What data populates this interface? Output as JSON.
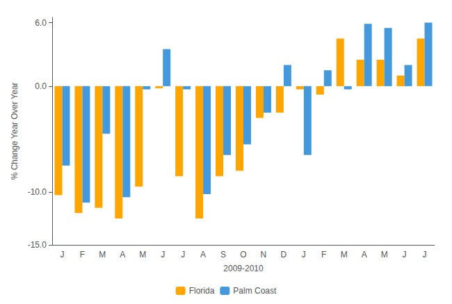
{
  "chart_data": {
    "type": "bar",
    "categories": [
      "J",
      "F",
      "M",
      "A",
      "M",
      "J",
      "J",
      "A",
      "S",
      "O",
      "N",
      "D",
      "J",
      "F",
      "M",
      "A",
      "M",
      "J",
      "J"
    ],
    "series": [
      {
        "name": "Florida",
        "color": "#FFA500",
        "values": [
          -10.3,
          -12.0,
          -11.5,
          -12.5,
          -9.5,
          -0.2,
          -8.5,
          -12.5,
          -8.5,
          -8.0,
          -3.0,
          -2.5,
          -0.3,
          -0.8,
          4.5,
          2.5,
          2.5,
          1.0,
          4.5
        ]
      },
      {
        "name": "Palm Coast",
        "color": "#4499DD",
        "values": [
          -7.5,
          -11.0,
          -4.5,
          -10.5,
          -0.3,
          3.5,
          -0.3,
          -10.2,
          -6.5,
          -5.5,
          -2.5,
          2.0,
          -6.5,
          1.5,
          -0.3,
          5.9,
          5.5,
          2.0,
          6.0
        ]
      }
    ],
    "xlabel": "2009-2010",
    "ylabel": "% Change Year Over Year",
    "ylim": [
      -15.0,
      6.5
    ],
    "yticks": [
      {
        "value": -15.0,
        "label": "-15.0"
      },
      {
        "value": -10.0,
        "label": "-10.0"
      },
      {
        "value": 0.0,
        "label": "0.0"
      },
      {
        "value": 6.0,
        "label": "6.0"
      }
    ],
    "grid": false,
    "legend": "lower center"
  }
}
